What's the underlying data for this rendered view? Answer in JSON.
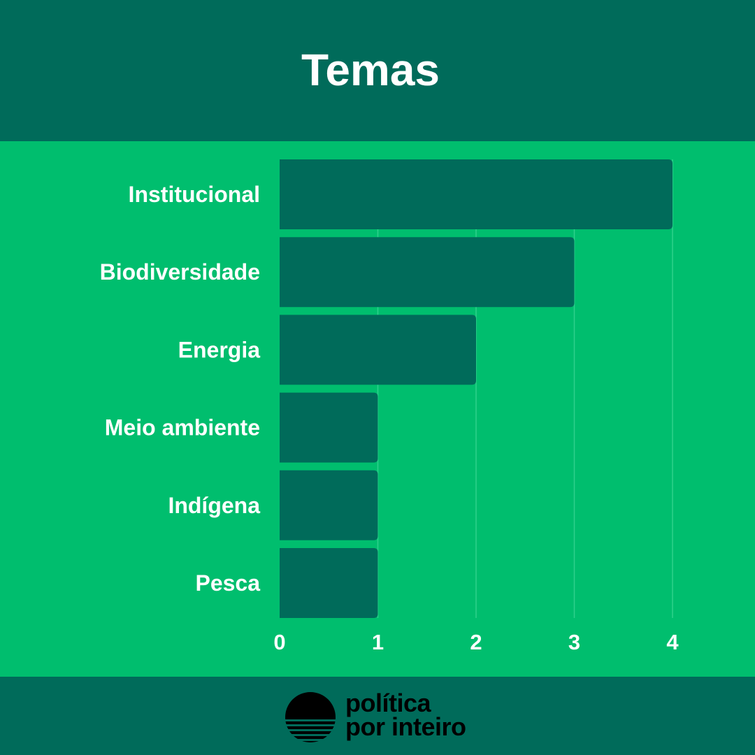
{
  "header": {
    "title": "Temas"
  },
  "chart_data": {
    "type": "bar",
    "orientation": "horizontal",
    "categories": [
      "Institucional",
      "Biodiversidade",
      "Energia",
      "Meio ambiente",
      "Indígena",
      "Pesca"
    ],
    "values": [
      4,
      3,
      2,
      1,
      1,
      1
    ],
    "xlim": [
      0,
      4
    ],
    "xticks": [
      "0",
      "1",
      "2",
      "3",
      "4"
    ],
    "grid": true,
    "legend": "none",
    "colors": {
      "bar": "#006B5A",
      "background": "#00BE6E",
      "grid": "#2FD08C"
    }
  },
  "footer": {
    "brand_line1": "política",
    "brand_line2": "por inteiro",
    "logo_icon": "sun-horizon-icon"
  }
}
